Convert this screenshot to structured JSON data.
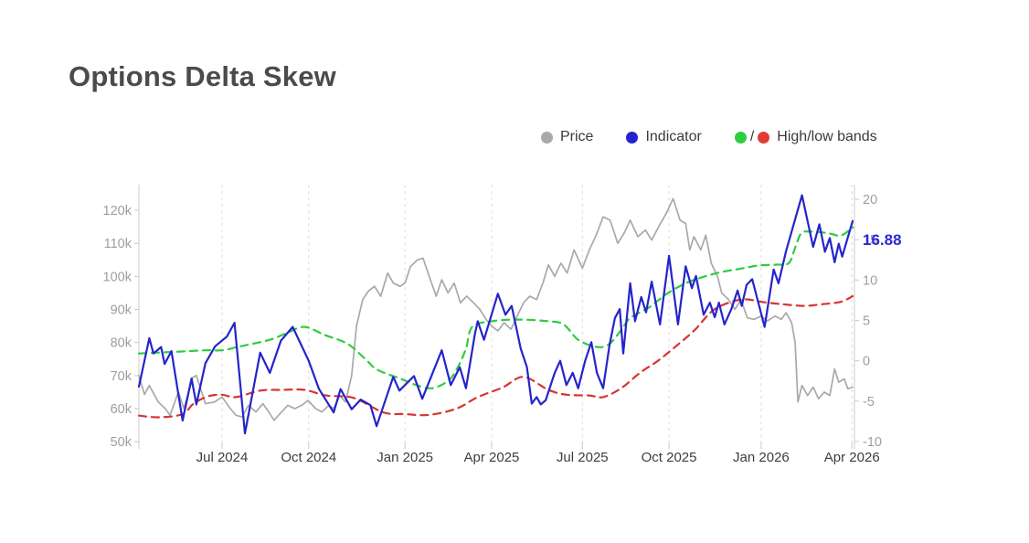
{
  "header": {
    "title": "Options Delta Skew"
  },
  "legend": {
    "items": [
      {
        "label": "Price",
        "color": "#a9a9a9"
      },
      {
        "label": "Indicator",
        "color": "#2424cb"
      },
      {
        "label": "High/low bands",
        "color_high": "#2ecc40",
        "color_low": "#e23b34",
        "separator": "/"
      }
    ]
  },
  "annotation": {
    "last_value": "16.88",
    "color": "#2a2ad4"
  },
  "chart_data": {
    "type": "line",
    "title": "Options Delta Skew",
    "grid": "vertical-dashed",
    "legend_position": "top-right",
    "x_axis": {
      "unit": "weeks (i) from mid-Apr 2024, i_max = 103 = mid-Apr 2026",
      "ticks": [
        {
          "label": "Jul 2024",
          "i": 12.0
        },
        {
          "label": "Oct 2024",
          "i": 24.5
        },
        {
          "label": "Jan 2025",
          "i": 38.4
        },
        {
          "label": "Apr 2025",
          "i": 50.9
        },
        {
          "label": "Jul 2025",
          "i": 64.0
        },
        {
          "label": "Oct 2025",
          "i": 76.5
        },
        {
          "label": "Jan 2026",
          "i": 89.8
        },
        {
          "label": "Apr 2026",
          "i": 102.9
        }
      ]
    },
    "left_y_axis": {
      "title": "Price",
      "ticks": [
        "120k",
        "110k",
        "100k",
        "90k",
        "80k",
        "70k",
        "60k",
        "50k"
      ],
      "tick_values": [
        120,
        110,
        100,
        90,
        80,
        70,
        60,
        50
      ],
      "range": [
        50,
        127.7
      ]
    },
    "right_y_axis": {
      "title": "Indicator",
      "ticks": [
        "20",
        "15",
        "10",
        "5",
        "0",
        "-5",
        "-10"
      ],
      "tick_values": [
        20,
        15,
        10,
        5,
        0,
        -5,
        -10
      ],
      "range": [
        -10.9,
        21.8
      ]
    },
    "series": [
      {
        "name": "Price",
        "axis": "left",
        "color": "#a9a9a9",
        "style": "solid",
        "width": 1.7,
        "smooth": false,
        "points": [
          [
            0,
            70
          ],
          [
            0.8,
            64.3
          ],
          [
            1.5,
            67
          ],
          [
            2.8,
            62
          ],
          [
            3.8,
            60
          ],
          [
            4.5,
            58
          ],
          [
            5.7,
            65
          ],
          [
            6.5,
            60
          ],
          [
            7.8,
            69.5
          ],
          [
            8.3,
            70
          ],
          [
            9.6,
            61.5
          ],
          [
            10.9,
            62
          ],
          [
            12,
            63.5
          ],
          [
            13.2,
            60
          ],
          [
            14,
            58
          ],
          [
            14.9,
            57.5
          ],
          [
            15.8,
            61
          ],
          [
            16.9,
            59
          ],
          [
            17.9,
            61.5
          ],
          [
            18.9,
            58.5
          ],
          [
            19.5,
            56.5
          ],
          [
            20.6,
            59
          ],
          [
            21.5,
            61
          ],
          [
            22.5,
            60
          ],
          [
            23.5,
            61
          ],
          [
            24.4,
            62.5
          ],
          [
            25.5,
            60
          ],
          [
            26.4,
            59
          ],
          [
            27.4,
            61
          ],
          [
            28.1,
            60
          ],
          [
            29,
            64
          ],
          [
            29.8,
            62
          ],
          [
            30.7,
            70
          ],
          [
            31.4,
            85
          ],
          [
            32.3,
            93
          ],
          [
            33.1,
            95.5
          ],
          [
            34,
            97
          ],
          [
            34.9,
            94
          ],
          [
            35.9,
            101
          ],
          [
            36.7,
            98
          ],
          [
            37.7,
            97
          ],
          [
            38.4,
            98
          ],
          [
            39.2,
            103
          ],
          [
            40.2,
            105
          ],
          [
            41,
            105.5
          ],
          [
            41.9,
            100
          ],
          [
            42.9,
            94
          ],
          [
            43.7,
            99
          ],
          [
            44.6,
            95
          ],
          [
            45.5,
            98
          ],
          [
            46.4,
            92
          ],
          [
            47.3,
            94
          ],
          [
            48.3,
            92
          ],
          [
            49.2,
            90
          ],
          [
            50.1,
            87
          ],
          [
            50.9,
            85
          ],
          [
            51.8,
            83.5
          ],
          [
            52.7,
            86
          ],
          [
            53.7,
            84
          ],
          [
            54.6,
            88
          ],
          [
            55.5,
            92
          ],
          [
            56.4,
            94
          ],
          [
            57.4,
            93
          ],
          [
            58.3,
            98
          ],
          [
            59.1,
            103.5
          ],
          [
            60,
            100
          ],
          [
            60.9,
            104
          ],
          [
            61.8,
            101
          ],
          [
            62.8,
            108
          ],
          [
            64,
            102.5
          ],
          [
            65,
            108
          ],
          [
            65.9,
            112
          ],
          [
            67,
            118
          ],
          [
            68,
            117
          ],
          [
            69.1,
            110
          ],
          [
            70,
            113
          ],
          [
            70.9,
            117
          ],
          [
            72,
            112
          ],
          [
            73.1,
            114
          ],
          [
            74,
            111
          ],
          [
            75,
            115
          ],
          [
            76.1,
            119
          ],
          [
            77.1,
            123.5
          ],
          [
            78.1,
            117
          ],
          [
            78.9,
            116
          ],
          [
            79.5,
            108
          ],
          [
            80.1,
            112
          ],
          [
            81.1,
            108
          ],
          [
            81.8,
            112.5
          ],
          [
            82.6,
            104
          ],
          [
            83.5,
            100
          ],
          [
            84.1,
            95
          ],
          [
            85.1,
            93
          ],
          [
            86,
            90
          ],
          [
            86.9,
            93
          ],
          [
            87.8,
            87.5
          ],
          [
            88.8,
            87
          ],
          [
            89.8,
            88
          ],
          [
            90.7,
            86.5
          ],
          [
            91.8,
            88
          ],
          [
            92.7,
            87
          ],
          [
            93.4,
            89
          ],
          [
            94.2,
            86
          ],
          [
            94.7,
            80
          ],
          [
            95.1,
            62
          ],
          [
            95.7,
            67
          ],
          [
            96.5,
            64
          ],
          [
            97.3,
            66.5
          ],
          [
            98.1,
            63
          ],
          [
            98.9,
            65
          ],
          [
            99.7,
            64
          ],
          [
            100.4,
            72
          ],
          [
            101,
            68
          ],
          [
            101.8,
            69
          ],
          [
            102.3,
            66
          ],
          [
            103,
            66.5
          ]
        ]
      },
      {
        "name": "Indicator",
        "axis": "right",
        "color": "#2424cb",
        "style": "solid",
        "width": 2.2,
        "smooth": false,
        "last_value": 16.88,
        "points": [
          [
            0,
            -3.2
          ],
          [
            1.5,
            2.8
          ],
          [
            2.1,
            0.9
          ],
          [
            3.2,
            1.7
          ],
          [
            3.7,
            -0.4
          ],
          [
            4.7,
            1.2
          ],
          [
            6.3,
            -7.4
          ],
          [
            7.6,
            -2.2
          ],
          [
            8.3,
            -5.4
          ],
          [
            9.6,
            -0.3
          ],
          [
            11,
            1.8
          ],
          [
            12.7,
            3
          ],
          [
            13.8,
            4.7
          ],
          [
            15.3,
            -9
          ],
          [
            17.5,
            1
          ],
          [
            18.9,
            -1.5
          ],
          [
            20.5,
            2.5
          ],
          [
            22.2,
            4.2
          ],
          [
            24.5,
            0
          ],
          [
            26,
            -3.5
          ],
          [
            28.1,
            -6.4
          ],
          [
            29.1,
            -3.5
          ],
          [
            30.7,
            -6
          ],
          [
            32,
            -4.8
          ],
          [
            33.4,
            -5.5
          ],
          [
            34.3,
            -8.1
          ],
          [
            36.7,
            -2
          ],
          [
            37.6,
            -3.7
          ],
          [
            39.7,
            -1.9
          ],
          [
            40.9,
            -4.7
          ],
          [
            43.7,
            1.3
          ],
          [
            45,
            -3
          ],
          [
            46.3,
            -0.8
          ],
          [
            47.2,
            -3.4
          ],
          [
            48.5,
            3.4
          ],
          [
            48.9,
            4.9
          ],
          [
            49.8,
            2.6
          ],
          [
            51.8,
            8.3
          ],
          [
            52.9,
            5.7
          ],
          [
            53.8,
            6.8
          ],
          [
            55.1,
            1.5
          ],
          [
            56,
            -0.8
          ],
          [
            56.7,
            -5.3
          ],
          [
            57.4,
            -4.5
          ],
          [
            58,
            -5.4
          ],
          [
            58.7,
            -4.9
          ],
          [
            60,
            -1.5
          ],
          [
            60.8,
            0
          ],
          [
            61.7,
            -3
          ],
          [
            62.6,
            -1.5
          ],
          [
            63.4,
            -3.4
          ],
          [
            64.4,
            0
          ],
          [
            65.3,
            2.3
          ],
          [
            66.1,
            -1.5
          ],
          [
            67,
            -3.4
          ],
          [
            67.9,
            1.9
          ],
          [
            68.7,
            5.3
          ],
          [
            69.4,
            6.4
          ],
          [
            69.9,
            0.9
          ],
          [
            70.9,
            9.6
          ],
          [
            71.6,
            4.9
          ],
          [
            72.5,
            7.9
          ],
          [
            73.2,
            6
          ],
          [
            74,
            9.8
          ],
          [
            75.2,
            4.5
          ],
          [
            76.5,
            13
          ],
          [
            77.8,
            4.5
          ],
          [
            78.9,
            11.7
          ],
          [
            79.8,
            9
          ],
          [
            80.4,
            10.5
          ],
          [
            81.5,
            5.7
          ],
          [
            82.4,
            7.2
          ],
          [
            83.1,
            5.4
          ],
          [
            83.7,
            7.2
          ],
          [
            84.5,
            4.5
          ],
          [
            85.5,
            6.4
          ],
          [
            86.4,
            8.7
          ],
          [
            87,
            6.8
          ],
          [
            87.7,
            9.4
          ],
          [
            88.5,
            10.1
          ],
          [
            90.3,
            4.2
          ],
          [
            91.6,
            11.3
          ],
          [
            92.3,
            9.6
          ],
          [
            93.4,
            13.6
          ],
          [
            94.3,
            16.3
          ],
          [
            95.7,
            20.5
          ],
          [
            97.3,
            14.1
          ],
          [
            98.2,
            16.9
          ],
          [
            99,
            13.5
          ],
          [
            99.7,
            15.2
          ],
          [
            100.4,
            12.2
          ],
          [
            101,
            14.5
          ],
          [
            101.5,
            12.9
          ],
          [
            103,
            17.3
          ]
        ]
      },
      {
        "name": "High band",
        "axis": "right",
        "color": "#2ecc40",
        "style": "dashed",
        "width": 2.2,
        "smooth": true,
        "points": [
          [
            0,
            0.9
          ],
          [
            5,
            1.1
          ],
          [
            9.6,
            1.3
          ],
          [
            12,
            1.3
          ],
          [
            14.2,
            1.7
          ],
          [
            18.9,
            2.6
          ],
          [
            21.5,
            3.5
          ],
          [
            23.9,
            4.2
          ],
          [
            26.8,
            3.2
          ],
          [
            30.1,
            2.1
          ],
          [
            32.7,
            0.2
          ],
          [
            34.4,
            -1.1
          ],
          [
            38,
            -2.3
          ],
          [
            40,
            -3
          ],
          [
            42.3,
            -3.4
          ],
          [
            44.6,
            -2.5
          ],
          [
            45.9,
            -1
          ],
          [
            47.2,
            1.5
          ],
          [
            48.1,
            4.2
          ],
          [
            50.9,
            4.9
          ],
          [
            54.7,
            5.1
          ],
          [
            59.1,
            4.9
          ],
          [
            61.3,
            4.5
          ],
          [
            63.4,
            2.6
          ],
          [
            66.1,
            1.7
          ],
          [
            67.9,
            2.1
          ],
          [
            69.6,
            3.8
          ],
          [
            70.9,
            5.3
          ],
          [
            73.6,
            6.6
          ],
          [
            76.2,
            8.3
          ],
          [
            78.9,
            9.6
          ],
          [
            81.5,
            10.4
          ],
          [
            84.1,
            11
          ],
          [
            86.8,
            11.4
          ],
          [
            89.4,
            11.8
          ],
          [
            92,
            11.9
          ],
          [
            93.8,
            12.1
          ],
          [
            94.7,
            14
          ],
          [
            95.6,
            15.8
          ],
          [
            96.9,
            16
          ],
          [
            98.6,
            15.9
          ],
          [
            100,
            15.7
          ],
          [
            101.3,
            15.5
          ],
          [
            102.9,
            16.4
          ],
          [
            103,
            16.5
          ]
        ]
      },
      {
        "name": "Low band",
        "axis": "right",
        "color": "#d63431",
        "style": "dashed",
        "width": 2.2,
        "smooth": true,
        "points": [
          [
            0,
            -6.8
          ],
          [
            3,
            -7
          ],
          [
            6.3,
            -6.6
          ],
          [
            7.9,
            -5.3
          ],
          [
            10,
            -4.4
          ],
          [
            12,
            -4.2
          ],
          [
            14,
            -4.5
          ],
          [
            17.5,
            -3.7
          ],
          [
            20.8,
            -3.6
          ],
          [
            23.9,
            -3.6
          ],
          [
            27,
            -4.3
          ],
          [
            31,
            -4.6
          ],
          [
            35.3,
            -6.4
          ],
          [
            38.4,
            -6.6
          ],
          [
            41.9,
            -6.7
          ],
          [
            45.9,
            -5.9
          ],
          [
            48.9,
            -4.5
          ],
          [
            52.5,
            -3.3
          ],
          [
            55.5,
            -2
          ],
          [
            59.1,
            -3.6
          ],
          [
            61.7,
            -4.2
          ],
          [
            65,
            -4.3
          ],
          [
            67,
            -4.5
          ],
          [
            69.6,
            -3.4
          ],
          [
            72.3,
            -1.5
          ],
          [
            74.9,
            0
          ],
          [
            77.5,
            1.8
          ],
          [
            80.2,
            3.8
          ],
          [
            82.8,
            6.2
          ],
          [
            85.5,
            7.3
          ],
          [
            87.7,
            7.6
          ],
          [
            89.8,
            7.3
          ],
          [
            92.9,
            7
          ],
          [
            96,
            6.8
          ],
          [
            98.6,
            7
          ],
          [
            101.3,
            7.3
          ],
          [
            103,
            8
          ]
        ]
      }
    ]
  }
}
